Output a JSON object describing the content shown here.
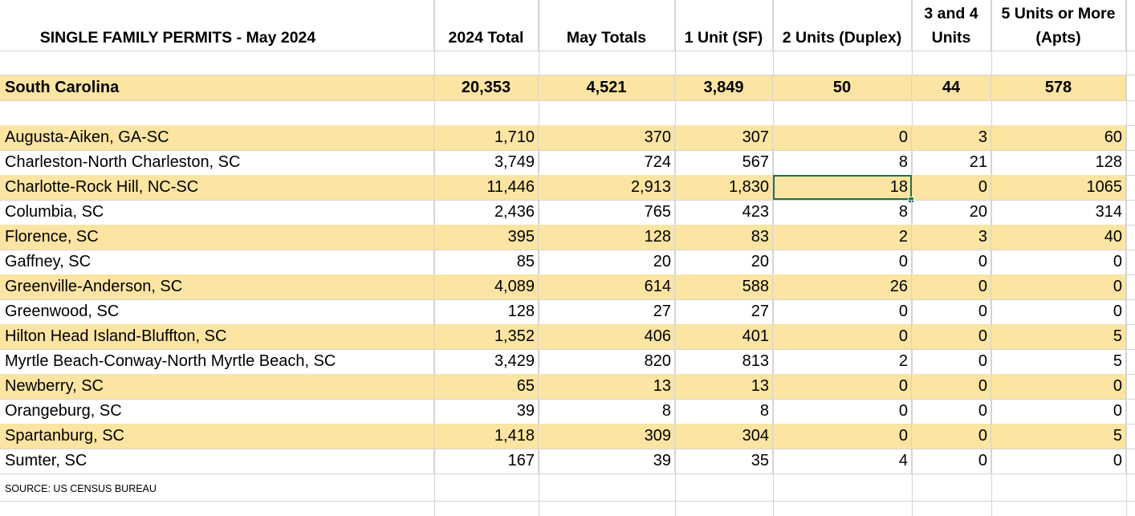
{
  "sheet": {
    "headers": {
      "title": "SINGLE FAMILY PERMITS - May 2024",
      "total_2024": "2024 Total",
      "may_totals": "May Totals",
      "one_unit": "1 Unit (SF)",
      "two_units": "2 Units (Duplex)",
      "three_four_line1": "3 and 4",
      "three_four_line2": "Units",
      "five_plus_line1": "5 Units or More",
      "five_plus_line2": "(Apts)"
    },
    "state": {
      "name": "South Carolina",
      "total_2024": "20,353",
      "may_totals": "4,521",
      "one_unit": "3,849",
      "two_units": "50",
      "three_four": "44",
      "five_plus": "578"
    },
    "rows": [
      {
        "name": "Augusta-Aiken, GA-SC",
        "total_2024": "1,710",
        "may_totals": "370",
        "one_unit": "307",
        "two_units": "0",
        "three_four": "3",
        "five_plus": "60"
      },
      {
        "name": "Charleston-North Charleston, SC",
        "total_2024": "3,749",
        "may_totals": "724",
        "one_unit": "567",
        "two_units": "8",
        "three_four": "21",
        "five_plus": "128"
      },
      {
        "name": "Charlotte-Rock Hill, NC-SC",
        "total_2024": "11,446",
        "may_totals": "2,913",
        "one_unit": "1,830",
        "two_units": "18",
        "three_four": "0",
        "five_plus": "1065"
      },
      {
        "name": "Columbia, SC",
        "total_2024": "2,436",
        "may_totals": "765",
        "one_unit": "423",
        "two_units": "8",
        "three_four": "20",
        "five_plus": "314"
      },
      {
        "name": "Florence, SC",
        "total_2024": "395",
        "may_totals": "128",
        "one_unit": "83",
        "two_units": "2",
        "three_four": "3",
        "five_plus": "40"
      },
      {
        "name": "Gaffney, SC",
        "total_2024": "85",
        "may_totals": "20",
        "one_unit": "20",
        "two_units": "0",
        "three_four": "0",
        "five_plus": "0"
      },
      {
        "name": "Greenville-Anderson, SC",
        "total_2024": "4,089",
        "may_totals": "614",
        "one_unit": "588",
        "two_units": "26",
        "three_four": "0",
        "five_plus": "0"
      },
      {
        "name": "Greenwood, SC",
        "total_2024": "128",
        "may_totals": "27",
        "one_unit": "27",
        "two_units": "0",
        "three_four": "0",
        "five_plus": "0"
      },
      {
        "name": "Hilton Head Island-Bluffton, SC",
        "total_2024": "1,352",
        "may_totals": "406",
        "one_unit": "401",
        "two_units": "0",
        "three_four": "0",
        "five_plus": "5"
      },
      {
        "name": "Myrtle Beach-Conway-North Myrtle Beach, SC",
        "total_2024": "3,429",
        "may_totals": "820",
        "one_unit": "813",
        "two_units": "2",
        "three_four": "0",
        "five_plus": "5"
      },
      {
        "name": "Newberry, SC",
        "total_2024": "65",
        "may_totals": "13",
        "one_unit": "13",
        "two_units": "0",
        "three_four": "0",
        "five_plus": "0"
      },
      {
        "name": "Orangeburg, SC",
        "total_2024": "39",
        "may_totals": "8",
        "one_unit": "8",
        "two_units": "0",
        "three_four": "0",
        "five_plus": "0"
      },
      {
        "name": "Spartanburg, SC",
        "total_2024": "1,418",
        "may_totals": "309",
        "one_unit": "304",
        "two_units": "0",
        "three_four": "0",
        "five_plus": "5"
      },
      {
        "name": "Sumter, SC",
        "total_2024": "167",
        "may_totals": "39",
        "one_unit": "35",
        "two_units": "4",
        "three_four": "0",
        "five_plus": "0"
      }
    ],
    "source": "SOURCE:  US CENSUS BUREAU"
  },
  "colors": {
    "highlight": "#fce4a2",
    "selection": "#217346",
    "gridline": "#d4d4d4"
  }
}
